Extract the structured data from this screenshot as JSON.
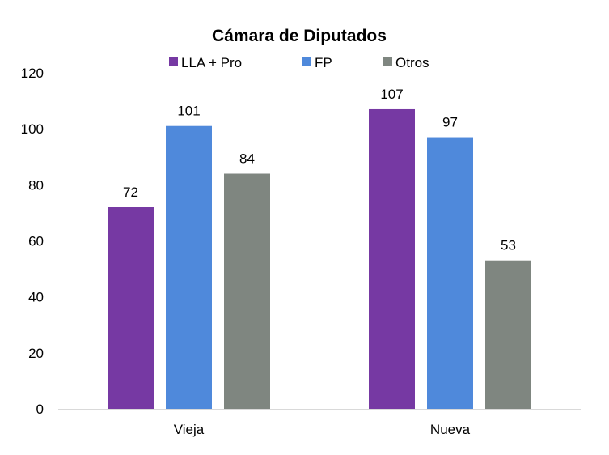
{
  "chart_data": {
    "type": "bar",
    "title": "Cámara de Diputados",
    "categories": [
      "Vieja",
      "Nueva"
    ],
    "series": [
      {
        "name": "LLA + Pro",
        "color": "#7639A3",
        "values": [
          72,
          107
        ]
      },
      {
        "name": "FP",
        "color": "#4F89DB",
        "values": [
          101,
          97
        ]
      },
      {
        "name": "Otros",
        "color": "#7F8680",
        "values": [
          84,
          53
        ]
      }
    ],
    "ylim": [
      0,
      120
    ],
    "yticks": [
      0,
      20,
      40,
      60,
      80,
      100,
      120
    ],
    "xlabel": "",
    "ylabel": "",
    "legend_position": "top",
    "grid": false
  }
}
